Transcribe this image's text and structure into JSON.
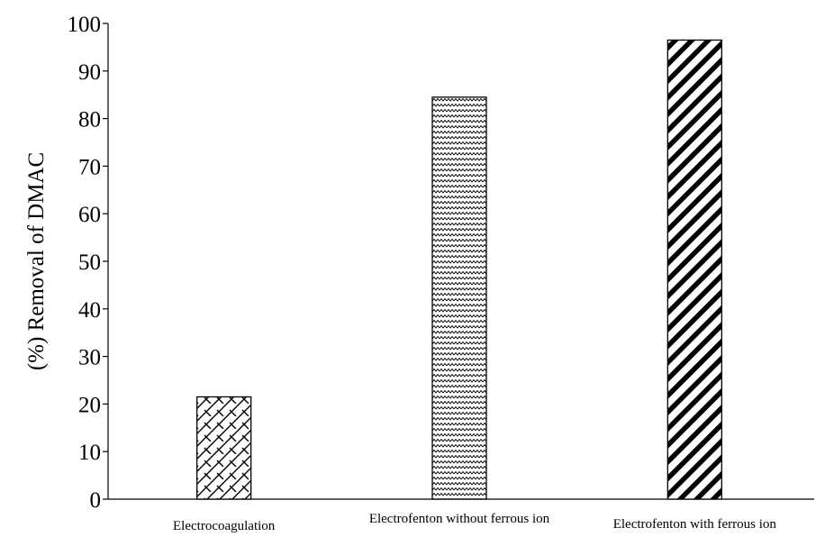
{
  "chart_data": {
    "type": "bar",
    "title": "",
    "xlabel": "",
    "ylabel": "(%) Removal of DMAC",
    "ylim": [
      0,
      100
    ],
    "yticks": [
      0,
      10,
      20,
      30,
      40,
      50,
      60,
      70,
      80,
      90,
      100
    ],
    "categories": [
      "Electrocoagulation",
      "Electrofenton without ferrous ion",
      "Electrofenton with ferrous ion"
    ],
    "values": [
      21.5,
      84.5,
      96.5
    ],
    "patterns": [
      "brick-hatch",
      "zigzag",
      "diagonal-stripes"
    ],
    "grid": false,
    "legend": "none",
    "colors": {
      "bar_stroke": "#000000",
      "bar_fill": "#ffffff",
      "axis": "#000000"
    }
  }
}
